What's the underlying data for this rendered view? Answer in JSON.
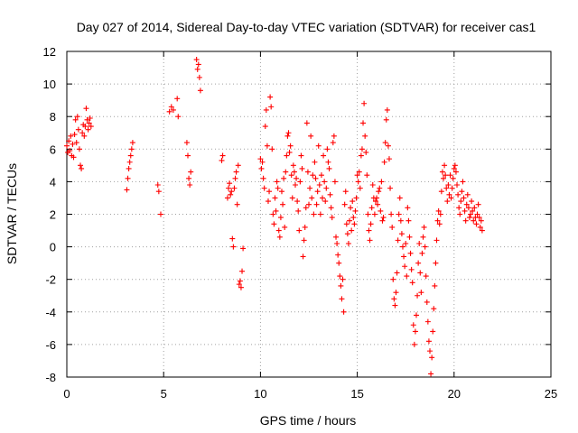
{
  "chart_data": {
    "type": "scatter",
    "title": "Day 027 of 2014, Sidereal Day-to-day VTEC variation (SDTVAR) for receiver cas1",
    "xlabel": "GPS time / hours",
    "ylabel": "SDTVAR / TECUs",
    "xlim": [
      0,
      25
    ],
    "ylim": [
      -8,
      12
    ],
    "xticks": [
      0,
      5,
      10,
      15,
      20,
      25
    ],
    "yticks": [
      -8,
      -6,
      -4,
      -2,
      0,
      2,
      4,
      6,
      8,
      10,
      12
    ],
    "grid": true,
    "marker": "plus",
    "color": "#ff0000",
    "series": [
      {
        "name": "SDTVAR",
        "points": [
          [
            0.0,
            6.2
          ],
          [
            0.05,
            5.8
          ],
          [
            0.1,
            6.5
          ],
          [
            0.15,
            5.9
          ],
          [
            0.2,
            6.8
          ],
          [
            0.25,
            5.6
          ],
          [
            0.3,
            6.3
          ],
          [
            0.35,
            5.5
          ],
          [
            0.4,
            6.9
          ],
          [
            0.45,
            7.8
          ],
          [
            0.5,
            6.4
          ],
          [
            0.55,
            8.0
          ],
          [
            0.6,
            7.2
          ],
          [
            0.65,
            6.0
          ],
          [
            0.7,
            5.0
          ],
          [
            0.75,
            4.8
          ],
          [
            0.8,
            7.0
          ],
          [
            0.85,
            7.5
          ],
          [
            0.9,
            6.8
          ],
          [
            0.95,
            7.4
          ],
          [
            1.0,
            8.5
          ],
          [
            1.05,
            7.8
          ],
          [
            1.1,
            7.2
          ],
          [
            1.15,
            7.6
          ],
          [
            1.2,
            7.9
          ],
          [
            1.25,
            7.4
          ],
          [
            3.1,
            3.5
          ],
          [
            3.15,
            4.2
          ],
          [
            3.2,
            4.8
          ],
          [
            3.25,
            5.2
          ],
          [
            3.3,
            5.6
          ],
          [
            3.35,
            6.0
          ],
          [
            3.4,
            6.4
          ],
          [
            4.7,
            3.8
          ],
          [
            4.75,
            3.4
          ],
          [
            4.85,
            2.0
          ],
          [
            5.3,
            8.3
          ],
          [
            5.4,
            8.6
          ],
          [
            5.5,
            8.4
          ],
          [
            5.7,
            9.1
          ],
          [
            5.75,
            8.0
          ],
          [
            6.2,
            6.4
          ],
          [
            6.25,
            5.6
          ],
          [
            6.3,
            4.2
          ],
          [
            6.35,
            3.8
          ],
          [
            6.4,
            4.6
          ],
          [
            6.7,
            11.5
          ],
          [
            6.75,
            10.9
          ],
          [
            6.8,
            11.2
          ],
          [
            6.85,
            10.4
          ],
          [
            6.9,
            9.6
          ],
          [
            8.0,
            5.3
          ],
          [
            8.05,
            5.6
          ],
          [
            8.3,
            3.0
          ],
          [
            8.35,
            3.6
          ],
          [
            8.4,
            3.9
          ],
          [
            8.45,
            3.2
          ],
          [
            8.5,
            3.4
          ],
          [
            8.55,
            0.5
          ],
          [
            8.6,
            0.0
          ],
          [
            8.65,
            3.6
          ],
          [
            8.7,
            4.2
          ],
          [
            8.75,
            4.6
          ],
          [
            8.8,
            2.6
          ],
          [
            8.85,
            5.0
          ],
          [
            8.9,
            -2.3
          ],
          [
            8.95,
            -2.1
          ],
          [
            9.0,
            -2.5
          ],
          [
            9.05,
            -1.5
          ],
          [
            9.1,
            -0.1
          ],
          [
            10.0,
            5.4
          ],
          [
            10.05,
            4.8
          ],
          [
            10.1,
            5.2
          ],
          [
            10.15,
            4.2
          ],
          [
            10.2,
            3.6
          ],
          [
            10.25,
            7.4
          ],
          [
            10.3,
            8.4
          ],
          [
            10.35,
            6.2
          ],
          [
            10.4,
            2.8
          ],
          [
            10.45,
            3.4
          ],
          [
            10.5,
            9.2
          ],
          [
            10.55,
            8.6
          ],
          [
            10.6,
            6.0
          ],
          [
            10.65,
            2.0
          ],
          [
            10.7,
            1.4
          ],
          [
            10.75,
            3.0
          ],
          [
            10.8,
            2.2
          ],
          [
            10.85,
            4.0
          ],
          [
            10.9,
            3.6
          ],
          [
            10.95,
            1.0
          ],
          [
            11.0,
            0.6
          ],
          [
            11.05,
            1.8
          ],
          [
            11.1,
            3.4
          ],
          [
            11.15,
            2.6
          ],
          [
            11.2,
            4.2
          ],
          [
            11.25,
            1.2
          ],
          [
            11.3,
            4.6
          ],
          [
            11.35,
            5.6
          ],
          [
            11.4,
            6.8
          ],
          [
            11.45,
            7.0
          ],
          [
            11.5,
            5.8
          ],
          [
            11.55,
            6.2
          ],
          [
            11.6,
            4.4
          ],
          [
            11.65,
            3.0
          ],
          [
            11.7,
            5.0
          ],
          [
            11.75,
            4.6
          ],
          [
            11.8,
            3.8
          ],
          [
            11.85,
            4.2
          ],
          [
            11.9,
            2.8
          ],
          [
            11.95,
            2.2
          ],
          [
            12.0,
            1.0
          ],
          [
            12.05,
            4.0
          ],
          [
            12.1,
            5.6
          ],
          [
            12.15,
            4.8
          ],
          [
            12.2,
            -0.6
          ],
          [
            12.25,
            0.4
          ],
          [
            12.3,
            1.2
          ],
          [
            12.35,
            2.4
          ],
          [
            12.4,
            7.6
          ],
          [
            12.45,
            4.6
          ],
          [
            12.5,
            2.6
          ],
          [
            12.55,
            3.6
          ],
          [
            12.6,
            6.8
          ],
          [
            12.65,
            3.0
          ],
          [
            12.7,
            4.4
          ],
          [
            12.75,
            2.0
          ],
          [
            12.8,
            5.2
          ],
          [
            12.85,
            4.2
          ],
          [
            12.9,
            2.6
          ],
          [
            12.95,
            3.4
          ],
          [
            13.0,
            6.2
          ],
          [
            13.05,
            3.8
          ],
          [
            13.1,
            2.0
          ],
          [
            13.15,
            4.4
          ],
          [
            13.2,
            3.0
          ],
          [
            13.25,
            5.6
          ],
          [
            13.3,
            4.0
          ],
          [
            13.35,
            2.8
          ],
          [
            13.4,
            3.6
          ],
          [
            13.45,
            6.0
          ],
          [
            13.5,
            5.2
          ],
          [
            13.55,
            4.8
          ],
          [
            13.6,
            3.2
          ],
          [
            13.65,
            2.4
          ],
          [
            13.7,
            1.8
          ],
          [
            13.75,
            6.4
          ],
          [
            13.8,
            6.8
          ],
          [
            13.85,
            4.0
          ],
          [
            13.9,
            0.6
          ],
          [
            13.95,
            0.2
          ],
          [
            14.0,
            -0.5
          ],
          [
            14.05,
            -1.0
          ],
          [
            14.1,
            -1.8
          ],
          [
            14.15,
            -2.4
          ],
          [
            14.2,
            -3.2
          ],
          [
            14.25,
            -2.0
          ],
          [
            14.3,
            -4.0
          ],
          [
            14.35,
            2.6
          ],
          [
            14.4,
            3.4
          ],
          [
            14.45,
            1.4
          ],
          [
            14.5,
            0.8
          ],
          [
            14.55,
            0.2
          ],
          [
            14.6,
            1.6
          ],
          [
            14.65,
            2.4
          ],
          [
            14.7,
            1.0
          ],
          [
            14.75,
            2.8
          ],
          [
            14.8,
            1.8
          ],
          [
            14.85,
            1.4
          ],
          [
            14.9,
            2.2
          ],
          [
            14.95,
            3.0
          ],
          [
            15.0,
            4.4
          ],
          [
            15.05,
            4.0
          ],
          [
            15.1,
            4.6
          ],
          [
            15.15,
            3.6
          ],
          [
            15.2,
            5.6
          ],
          [
            15.25,
            6.0
          ],
          [
            15.3,
            7.6
          ],
          [
            15.35,
            8.8
          ],
          [
            15.4,
            6.8
          ],
          [
            15.45,
            5.8
          ],
          [
            15.5,
            4.4
          ],
          [
            15.55,
            2.0
          ],
          [
            15.6,
            1.0
          ],
          [
            15.65,
            0.4
          ],
          [
            15.7,
            1.4
          ],
          [
            15.75,
            2.4
          ],
          [
            15.8,
            3.8
          ],
          [
            15.85,
            3.0
          ],
          [
            15.9,
            2.0
          ],
          [
            15.95,
            2.8
          ],
          [
            16.0,
            3.0
          ],
          [
            16.05,
            2.6
          ],
          [
            16.1,
            3.4
          ],
          [
            16.15,
            3.6
          ],
          [
            16.2,
            2.2
          ],
          [
            16.25,
            4.0
          ],
          [
            16.3,
            1.6
          ],
          [
            16.35,
            1.8
          ],
          [
            16.4,
            5.2
          ],
          [
            16.45,
            6.4
          ],
          [
            16.5,
            7.8
          ],
          [
            16.55,
            8.4
          ],
          [
            16.6,
            6.2
          ],
          [
            16.65,
            5.4
          ],
          [
            16.7,
            3.6
          ],
          [
            16.75,
            2.0
          ],
          [
            16.8,
            1.2
          ],
          [
            16.85,
            -2.0
          ],
          [
            16.9,
            -3.2
          ],
          [
            16.95,
            -3.6
          ],
          [
            17.0,
            -2.8
          ],
          [
            17.05,
            -1.6
          ],
          [
            17.1,
            0.4
          ],
          [
            17.15,
            2.0
          ],
          [
            17.2,
            3.0
          ],
          [
            17.25,
            1.6
          ],
          [
            17.3,
            0.8
          ],
          [
            17.35,
            0.0
          ],
          [
            17.4,
            -0.6
          ],
          [
            17.45,
            -1.2
          ],
          [
            17.5,
            0.2
          ],
          [
            17.55,
            -1.8
          ],
          [
            17.6,
            2.4
          ],
          [
            17.65,
            1.6
          ],
          [
            17.7,
            0.6
          ],
          [
            17.75,
            -0.4
          ],
          [
            17.8,
            -1.4
          ],
          [
            17.85,
            -2.2
          ],
          [
            17.9,
            -4.8
          ],
          [
            17.95,
            -6.0
          ],
          [
            18.0,
            -5.2
          ],
          [
            18.05,
            -4.2
          ],
          [
            18.1,
            -3.0
          ],
          [
            18.15,
            -1.0
          ],
          [
            18.2,
            0.2
          ],
          [
            18.25,
            -1.6
          ],
          [
            18.3,
            -2.8
          ],
          [
            18.35,
            -0.4
          ],
          [
            18.4,
            0.6
          ],
          [
            18.45,
            1.2
          ],
          [
            18.5,
            0.0
          ],
          [
            18.55,
            -1.8
          ],
          [
            18.6,
            -3.4
          ],
          [
            18.65,
            -4.6
          ],
          [
            18.7,
            -5.8
          ],
          [
            18.75,
            -6.4
          ],
          [
            18.8,
            -7.8
          ],
          [
            18.85,
            -6.8
          ],
          [
            18.9,
            -5.2
          ],
          [
            18.95,
            -3.8
          ],
          [
            19.0,
            -2.4
          ],
          [
            19.05,
            -1.0
          ],
          [
            19.1,
            0.4
          ],
          [
            19.15,
            1.6
          ],
          [
            19.2,
            2.2
          ],
          [
            19.25,
            1.4
          ],
          [
            19.3,
            2.0
          ],
          [
            19.35,
            3.4
          ],
          [
            19.4,
            4.6
          ],
          [
            19.45,
            4.2
          ],
          [
            19.5,
            5.0
          ],
          [
            19.55,
            4.4
          ],
          [
            19.6,
            3.6
          ],
          [
            19.65,
            2.8
          ],
          [
            19.7,
            3.8
          ],
          [
            19.75,
            3.2
          ],
          [
            19.8,
            4.4
          ],
          [
            19.85,
            3.0
          ],
          [
            19.9,
            3.6
          ],
          [
            19.95,
            4.2
          ],
          [
            20.0,
            4.8
          ],
          [
            20.05,
            5.0
          ],
          [
            20.1,
            4.6
          ],
          [
            20.15,
            3.8
          ],
          [
            20.2,
            3.2
          ],
          [
            20.25,
            2.4
          ],
          [
            20.3,
            2.0
          ],
          [
            20.35,
            2.8
          ],
          [
            20.4,
            3.4
          ],
          [
            20.45,
            4.0
          ],
          [
            20.5,
            3.0
          ],
          [
            20.55,
            2.2
          ],
          [
            20.6,
            1.6
          ],
          [
            20.65,
            2.6
          ],
          [
            20.7,
            3.2
          ],
          [
            20.75,
            2.4
          ],
          [
            20.8,
            1.8
          ],
          [
            20.85,
            2.0
          ],
          [
            20.9,
            2.8
          ],
          [
            20.95,
            2.2
          ],
          [
            21.0,
            1.6
          ],
          [
            21.05,
            2.4
          ],
          [
            21.1,
            1.8
          ],
          [
            21.15,
            1.4
          ],
          [
            21.2,
            2.0
          ],
          [
            21.25,
            2.6
          ],
          [
            21.3,
            1.8
          ],
          [
            21.35,
            1.2
          ],
          [
            21.4,
            1.6
          ],
          [
            21.45,
            1.0
          ]
        ]
      }
    ]
  }
}
